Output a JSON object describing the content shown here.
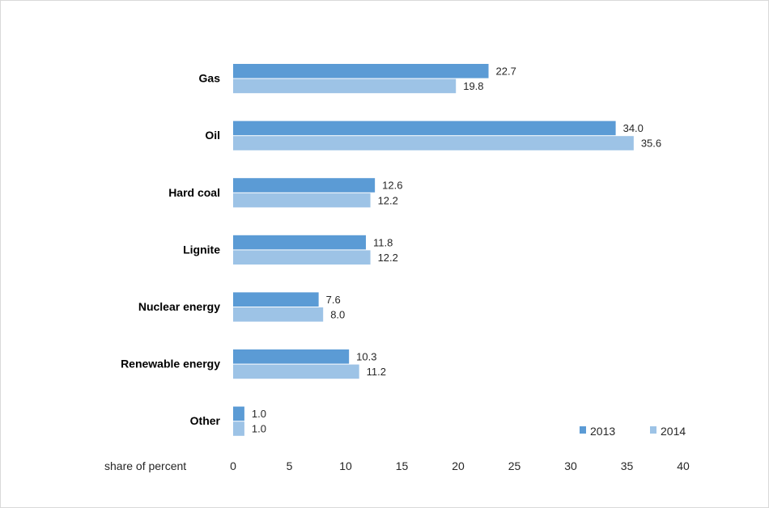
{
  "chart_data": {
    "type": "bar",
    "orientation": "horizontal",
    "categories": [
      "Gas",
      "Oil",
      "Hard coal",
      "Lignite",
      "Nuclear energy",
      "Renewable energy",
      "Other"
    ],
    "series": [
      {
        "name": "2013",
        "color": "#5b9bd5",
        "values": [
          22.7,
          34.0,
          12.6,
          11.8,
          7.6,
          10.3,
          1.0
        ],
        "labels": [
          "22.7",
          "34.0",
          "12.6",
          "11.8",
          "7.6",
          "10.3",
          "1.0"
        ]
      },
      {
        "name": "2014",
        "color": "#9dc3e6",
        "values": [
          19.8,
          35.6,
          12.2,
          12.2,
          8.0,
          11.2,
          1.0
        ],
        "labels": [
          "19.8",
          "35.6",
          "12.2",
          "12.2",
          "8.0",
          "11.2",
          "1.0"
        ]
      }
    ],
    "xlabel": "share of percent",
    "xlim": [
      0,
      40
    ],
    "xticks": [
      0,
      5,
      10,
      15,
      20,
      25,
      30,
      35,
      40
    ],
    "grid": false,
    "legend_position": "bottom-right"
  }
}
